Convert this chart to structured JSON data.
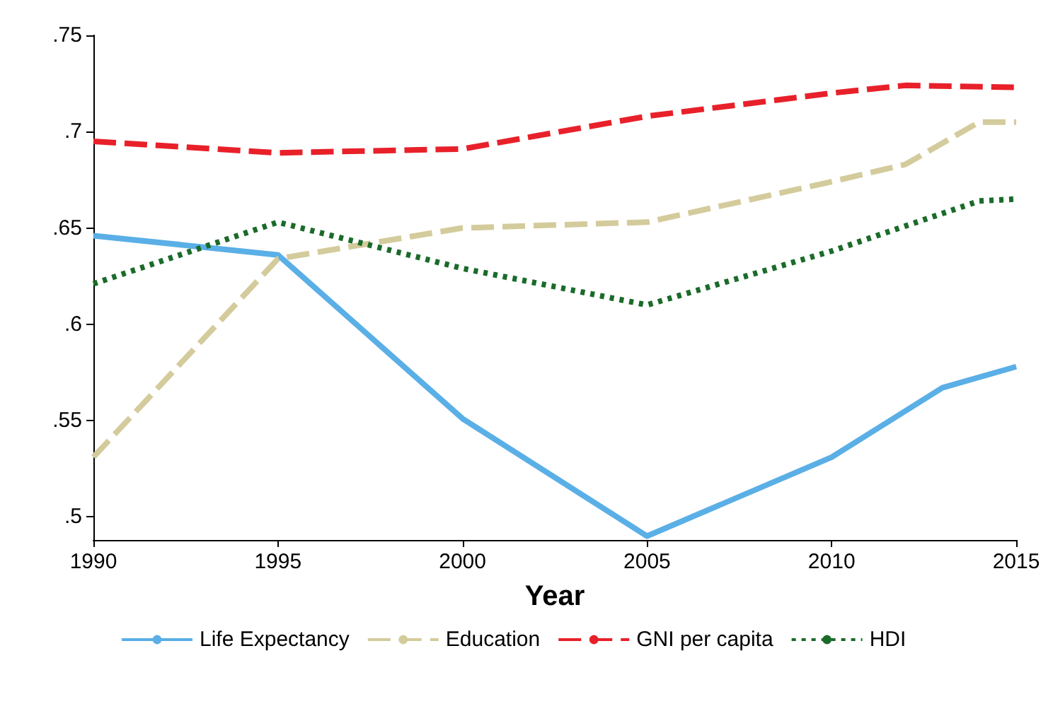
{
  "chart_data": {
    "type": "line",
    "xlabel": "Year",
    "series": [
      {
        "name": "Life Expectancy",
        "color": "#5aafe6",
        "line_style": "solid",
        "x": [
          1990,
          1995,
          2000,
          2005,
          2010,
          2013,
          2015
        ],
        "values": [
          0.646,
          0.636,
          0.551,
          0.49,
          0.531,
          0.567,
          0.578
        ]
      },
      {
        "name": "Education",
        "color": "#d4cb9c",
        "line_style": "dashed",
        "x": [
          1990,
          1995,
          2000,
          2005,
          2010,
          2012,
          2014,
          2015
        ],
        "values": [
          0.531,
          0.634,
          0.65,
          0.653,
          0.674,
          0.683,
          0.705,
          0.705
        ]
      },
      {
        "name": "GNI per capita",
        "color": "#e8202a",
        "line_style": "dashed",
        "x": [
          1990,
          1995,
          2000,
          2005,
          2010,
          2012,
          2015
        ],
        "values": [
          0.695,
          0.689,
          0.691,
          0.708,
          0.72,
          0.724,
          0.723
        ]
      },
      {
        "name": "HDI",
        "color": "#1a6b2a",
        "line_style": "dotted",
        "x": [
          1990,
          1995,
          2000,
          2005,
          2010,
          2014,
          2015
        ],
        "values": [
          0.621,
          0.653,
          0.629,
          0.61,
          0.638,
          0.664,
          0.665
        ]
      }
    ],
    "xlim": [
      1990,
      2015
    ],
    "xticks": [
      1990,
      1995,
      2000,
      2005,
      2010,
      2015
    ],
    "ylim": [
      0.488,
      0.75
    ],
    "yticks": [
      {
        "value": 0.5,
        "label": ".5"
      },
      {
        "value": 0.55,
        "label": ".55"
      },
      {
        "value": 0.6,
        "label": ".6"
      },
      {
        "value": 0.65,
        "label": ".65"
      },
      {
        "value": 0.7,
        "label": ".7"
      },
      {
        "value": 0.75,
        "label": ".75"
      }
    ],
    "grid": false,
    "legend": "bottom",
    "marker": "none"
  }
}
